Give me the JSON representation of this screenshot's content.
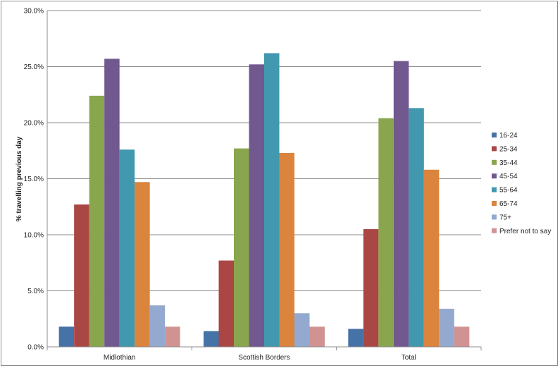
{
  "chart_data": {
    "type": "bar",
    "title": "",
    "xlabel": "",
    "ylabel": "% travelling previous day",
    "ylim": [
      0,
      30
    ],
    "yticks": [
      "0.0%",
      "5.0%",
      "10.0%",
      "15.0%",
      "20.0%",
      "25.0%",
      "30.0%"
    ],
    "categories": [
      "Midlothian",
      "Scottish Borders",
      "Total"
    ],
    "grid": true,
    "legend_position": "right",
    "series": [
      {
        "name": "16-24",
        "color": "#4572A7",
        "values": [
          1.8,
          1.4,
          1.6
        ]
      },
      {
        "name": "25-34",
        "color": "#AA4643",
        "values": [
          12.7,
          7.7,
          10.5
        ]
      },
      {
        "name": "35-44",
        "color": "#89A54E",
        "values": [
          22.4,
          17.7,
          20.4
        ]
      },
      {
        "name": "45-54",
        "color": "#71588F",
        "values": [
          25.7,
          25.2,
          25.5
        ]
      },
      {
        "name": "55-64",
        "color": "#4198AF",
        "values": [
          17.6,
          26.2,
          21.3
        ]
      },
      {
        "name": "65-74",
        "color": "#DB843D",
        "values": [
          14.7,
          17.3,
          15.8
        ]
      },
      {
        "name": "75+",
        "color": "#93A9CF",
        "values": [
          3.7,
          3.0,
          3.4
        ]
      },
      {
        "name": "Prefer not to say",
        "color": "#D19392",
        "values": [
          1.8,
          1.8,
          1.8
        ]
      }
    ]
  }
}
